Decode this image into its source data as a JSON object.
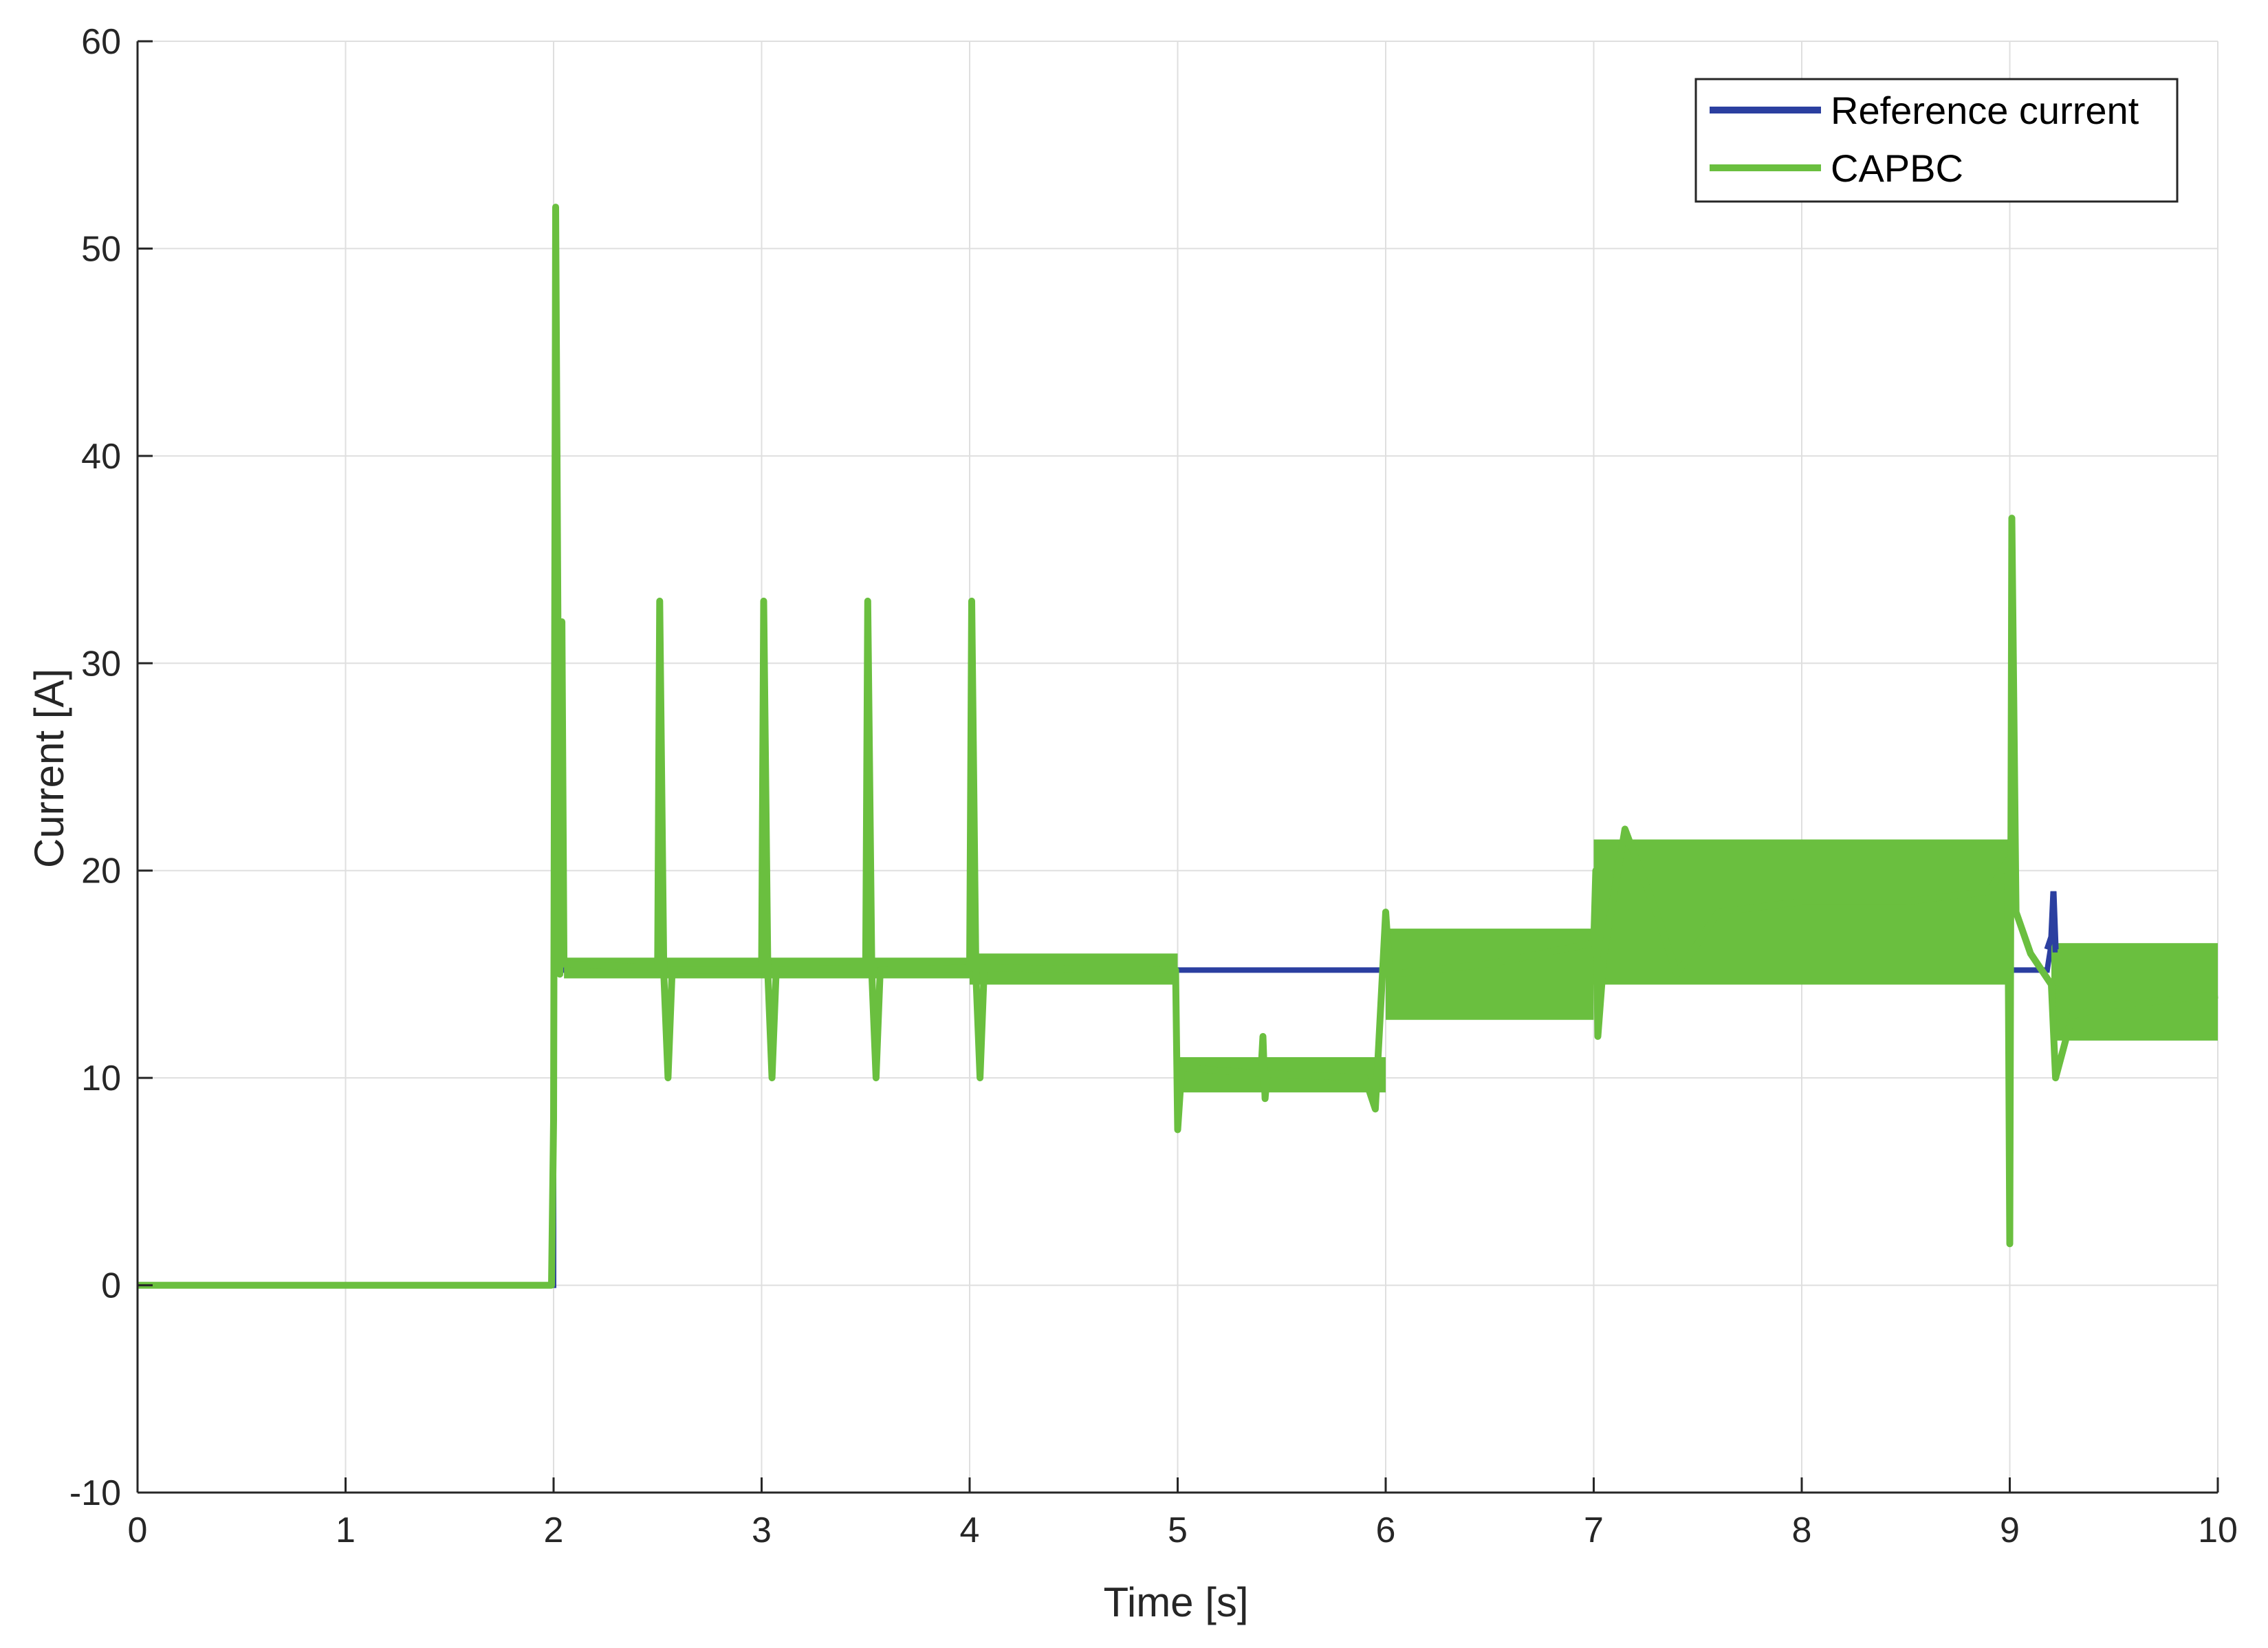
{
  "chart_data": {
    "type": "line",
    "title": "",
    "xlabel": "Time [s]",
    "ylabel": "Current [A]",
    "xlim": [
      0,
      10
    ],
    "ylim": [
      -10,
      60
    ],
    "xticks": [
      "0",
      "1",
      "2",
      "3",
      "4",
      "5",
      "6",
      "7",
      "8",
      "9",
      "10"
    ],
    "yticks": [
      "-10",
      "0",
      "10",
      "20",
      "30",
      "40",
      "50",
      "60"
    ],
    "grid": true,
    "legend_position": "top-right",
    "colors": {
      "reference": "#2b3fa0",
      "capbc": "#6abf3f"
    },
    "series": [
      {
        "name": "Reference current",
        "points": [
          [
            0,
            0
          ],
          [
            2.0,
            0
          ],
          [
            2.0,
            15.2
          ],
          [
            9.18,
            15.2
          ],
          [
            9.2,
            16.5
          ],
          [
            9.21,
            19.0
          ],
          [
            9.22,
            16.2
          ],
          [
            9.24,
            15.2
          ],
          [
            10,
            15.2
          ]
        ]
      },
      {
        "name": "CAPBC",
        "points": [
          [
            0,
            0
          ],
          [
            1.99,
            0
          ],
          [
            2.0,
            8
          ],
          [
            2.01,
            52
          ],
          [
            2.03,
            15
          ],
          [
            2.04,
            32
          ],
          [
            2.05,
            15.5
          ],
          [
            2.5,
            15.3
          ],
          [
            2.51,
            33
          ],
          [
            2.53,
            15
          ],
          [
            2.55,
            10
          ],
          [
            2.57,
            15.2
          ],
          [
            3.0,
            15.2
          ],
          [
            3.01,
            33
          ],
          [
            3.03,
            15
          ],
          [
            3.05,
            10
          ],
          [
            3.07,
            15.2
          ],
          [
            3.5,
            15.3
          ],
          [
            3.51,
            33
          ],
          [
            3.53,
            15
          ],
          [
            3.55,
            10
          ],
          [
            3.57,
            15.2
          ],
          [
            4.0,
            15.3
          ],
          [
            4.01,
            33
          ],
          [
            4.03,
            15
          ],
          [
            4.05,
            10
          ],
          [
            4.07,
            15.3
          ],
          [
            4.99,
            15.2
          ],
          [
            5.0,
            7.5
          ],
          [
            5.02,
            10.5
          ],
          [
            5.4,
            10.2
          ],
          [
            5.41,
            12
          ],
          [
            5.42,
            9
          ],
          [
            5.43,
            10.2
          ],
          [
            5.9,
            10
          ],
          [
            5.95,
            8.5
          ],
          [
            6.0,
            18
          ],
          [
            6.02,
            15
          ],
          [
            6.5,
            15.5
          ],
          [
            7.0,
            16.5
          ],
          [
            7.01,
            20
          ],
          [
            7.02,
            12
          ],
          [
            7.05,
            16
          ],
          [
            7.15,
            22
          ],
          [
            7.3,
            18
          ],
          [
            7.4,
            15
          ],
          [
            7.6,
            18
          ],
          [
            8.0,
            18.5
          ],
          [
            8.5,
            18.5
          ],
          [
            8.9,
            19
          ],
          [
            8.99,
            20.5
          ],
          [
            9.0,
            2
          ],
          [
            9.01,
            37
          ],
          [
            9.03,
            18
          ],
          [
            9.1,
            16
          ],
          [
            9.2,
            14.5
          ],
          [
            9.22,
            10
          ],
          [
            9.3,
            13
          ],
          [
            9.5,
            13.5
          ],
          [
            10,
            14
          ]
        ],
        "fill_band": [
          {
            "x0": 2.05,
            "x1": 4.0,
            "y0": 14.8,
            "y1": 15.8
          },
          {
            "x0": 4.0,
            "x1": 5.0,
            "y0": 14.5,
            "y1": 16.0
          },
          {
            "x0": 5.0,
            "x1": 6.0,
            "y0": 9.3,
            "y1": 11.0
          },
          {
            "x0": 6.0,
            "x1": 7.0,
            "y0": 12.8,
            "y1": 17.2
          },
          {
            "x0": 7.0,
            "x1": 9.0,
            "y0": 14.5,
            "y1": 21.5
          },
          {
            "x0": 9.2,
            "x1": 10.0,
            "y0": 11.8,
            "y1": 16.5
          }
        ]
      }
    ]
  }
}
